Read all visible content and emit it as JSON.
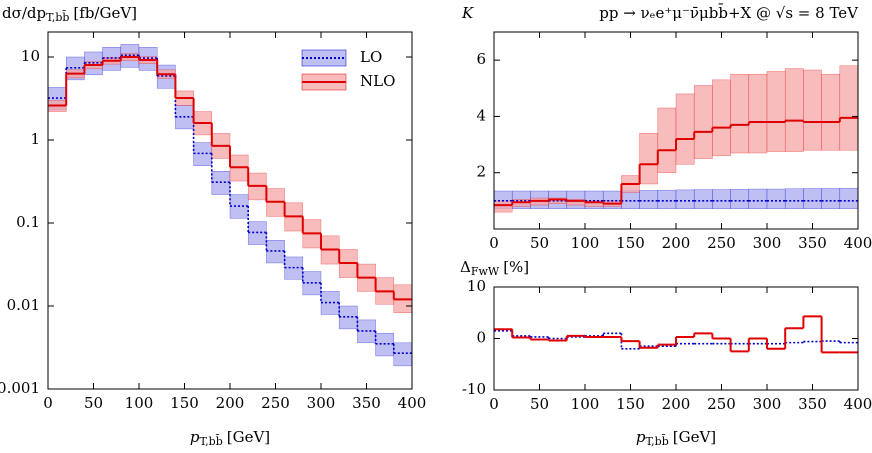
{
  "chart_data": [
    {
      "type": "histogram",
      "y_label": "dσ/dp",
      "y_label_sub": "T,bb̄",
      "y_label_unit": "[fb/GeV]",
      "x_label": "p",
      "x_label_sub": "T,bb̄",
      "x_label_unit": "[GeV]",
      "bins": [
        0,
        20,
        40,
        60,
        80,
        100,
        120,
        140,
        160,
        180,
        200,
        220,
        240,
        260,
        280,
        300,
        320,
        340,
        360,
        380,
        400
      ],
      "xlim": [
        0,
        400
      ],
      "xticks": [
        0,
        50,
        100,
        150,
        200,
        250,
        300,
        350,
        400
      ],
      "ylim": [
        0.001,
        20
      ],
      "yticks": [
        0.001,
        0.01,
        0.1,
        1,
        10
      ],
      "log_y": true,
      "legend": "top-right",
      "series": [
        {
          "name": "LO",
          "color": "#0000cc",
          "band_color": "#aaaaf0",
          "line_style": "dotted",
          "values": [
            3.2,
            7.4,
            8.5,
            9.7,
            10.5,
            9.7,
            5.9,
            1.9,
            0.69,
            0.31,
            0.16,
            0.077,
            0.046,
            0.029,
            0.019,
            0.011,
            0.0074,
            0.005,
            0.0035,
            0.0027
          ],
          "band_low": [
            2.3,
            5.3,
            6.1,
            6.9,
            7.5,
            6.9,
            4.2,
            1.36,
            0.49,
            0.22,
            0.114,
            0.055,
            0.033,
            0.021,
            0.0136,
            0.0079,
            0.0053,
            0.0036,
            0.0025,
            0.0019
          ],
          "band_high": [
            4.3,
            10,
            11.5,
            13.1,
            14.2,
            13.1,
            8,
            2.6,
            0.93,
            0.42,
            0.22,
            0.104,
            0.062,
            0.039,
            0.026,
            0.015,
            0.01,
            0.0068,
            0.0047,
            0.0036
          ]
        },
        {
          "name": "NLO",
          "color": "#e00000",
          "band_color": "#f5a5a5",
          "line_style": "solid",
          "values": [
            2.6,
            6.3,
            8.0,
            9.0,
            10,
            9.2,
            6.2,
            3.2,
            1.6,
            0.85,
            0.47,
            0.28,
            0.18,
            0.12,
            0.075,
            0.048,
            0.033,
            0.022,
            0.015,
            0.012
          ],
          "band_low": [
            2.2,
            5.6,
            7.2,
            8.2,
            9.0,
            8.3,
            5.5,
            2.6,
            1.15,
            0.6,
            0.32,
            0.19,
            0.12,
            0.08,
            0.05,
            0.032,
            0.022,
            0.015,
            0.0105,
            0.0083
          ],
          "band_high": [
            3.0,
            7.0,
            8.8,
            9.9,
            11,
            10.1,
            7.0,
            3.9,
            2.2,
            1.2,
            0.66,
            0.4,
            0.26,
            0.175,
            0.11,
            0.07,
            0.048,
            0.032,
            0.022,
            0.018
          ]
        }
      ]
    },
    {
      "type": "histogram",
      "y_label": "K",
      "annotation": "pp → νₑe⁺μ⁻ν̄μbb̄+X @ √s = 8 TeV",
      "bins": [
        0,
        20,
        40,
        60,
        80,
        100,
        120,
        140,
        160,
        180,
        200,
        220,
        240,
        260,
        280,
        300,
        320,
        340,
        360,
        380,
        400
      ],
      "xlim": [
        0,
        400
      ],
      "xticks": [
        0,
        50,
        100,
        150,
        200,
        250,
        300,
        350,
        400
      ],
      "ylim": [
        0,
        7
      ],
      "yticks": [
        2,
        4,
        6
      ],
      "log_y": false,
      "series": [
        {
          "color": "#0000cc",
          "band_color": "#aaaaf0",
          "line_style": "dotted",
          "values": [
            1,
            1,
            1,
            1,
            1,
            1,
            1,
            1,
            1,
            1,
            1,
            1,
            1,
            1,
            1,
            1,
            1,
            1,
            1,
            1
          ],
          "band_low": [
            0.72,
            0.72,
            0.72,
            0.72,
            0.72,
            0.72,
            0.72,
            0.72,
            0.72,
            0.72,
            0.72,
            0.72,
            0.72,
            0.72,
            0.72,
            0.72,
            0.72,
            0.72,
            0.72,
            0.72
          ],
          "band_high": [
            1.35,
            1.35,
            1.35,
            1.35,
            1.35,
            1.35,
            1.35,
            1.36,
            1.37,
            1.38,
            1.39,
            1.4,
            1.4,
            1.41,
            1.42,
            1.42,
            1.43,
            1.44,
            1.44,
            1.45
          ]
        },
        {
          "color": "#e00000",
          "band_color": "#f5a5a5",
          "line_style": "solid",
          "values": [
            0.85,
            0.95,
            1.0,
            1.05,
            1.0,
            0.95,
            0.9,
            1.6,
            2.3,
            2.8,
            3.2,
            3.45,
            3.6,
            3.7,
            3.8,
            3.8,
            3.85,
            3.8,
            3.8,
            3.95
          ],
          "band_low": [
            0.6,
            0.8,
            0.85,
            0.9,
            0.85,
            0.8,
            0.8,
            1.3,
            1.6,
            2.0,
            2.3,
            2.5,
            2.6,
            2.7,
            2.7,
            2.75,
            2.75,
            2.8,
            2.8,
            2.8
          ],
          "band_high": [
            1.0,
            1.05,
            1.1,
            1.1,
            1.05,
            1.0,
            1.0,
            1.9,
            3.4,
            4.3,
            4.8,
            5.1,
            5.3,
            5.5,
            5.5,
            5.6,
            5.7,
            5.65,
            5.5,
            5.8
          ]
        }
      ]
    },
    {
      "type": "histogram",
      "y_label": "Δ",
      "y_label_sub": "FwW",
      "y_label_unit": "[%]",
      "x_label": "p",
      "x_label_sub": "T,bb̄",
      "x_label_unit": "[GeV]",
      "bins": [
        0,
        20,
        40,
        60,
        80,
        100,
        120,
        140,
        160,
        180,
        200,
        220,
        240,
        260,
        280,
        300,
        320,
        340,
        360,
        380,
        400
      ],
      "xlim": [
        0,
        400
      ],
      "xticks": [
        0,
        50,
        100,
        150,
        200,
        250,
        300,
        350,
        400
      ],
      "ylim": [
        -10,
        10
      ],
      "yticks": [
        -10,
        0,
        10
      ],
      "log_y": false,
      "series": [
        {
          "color": "#0000cc",
          "line_style": "dotted",
          "values": [
            1.5,
            0.5,
            0.3,
            0,
            0.3,
            0.5,
            1,
            -2,
            -1.5,
            -1.5,
            -1,
            -1,
            -1,
            -1,
            -1,
            -1,
            -0.8,
            -0.6,
            -0.5,
            -0.8
          ]
        },
        {
          "color": "#e00000",
          "line_style": "solid",
          "values": [
            1.8,
            0.2,
            -0.2,
            -0.4,
            0.5,
            0.3,
            0.3,
            -0.5,
            -1.8,
            -1.2,
            0.3,
            1,
            0,
            -2.5,
            0,
            -2,
            2,
            4.3,
            -2.7,
            -2.7
          ]
        }
      ]
    }
  ]
}
